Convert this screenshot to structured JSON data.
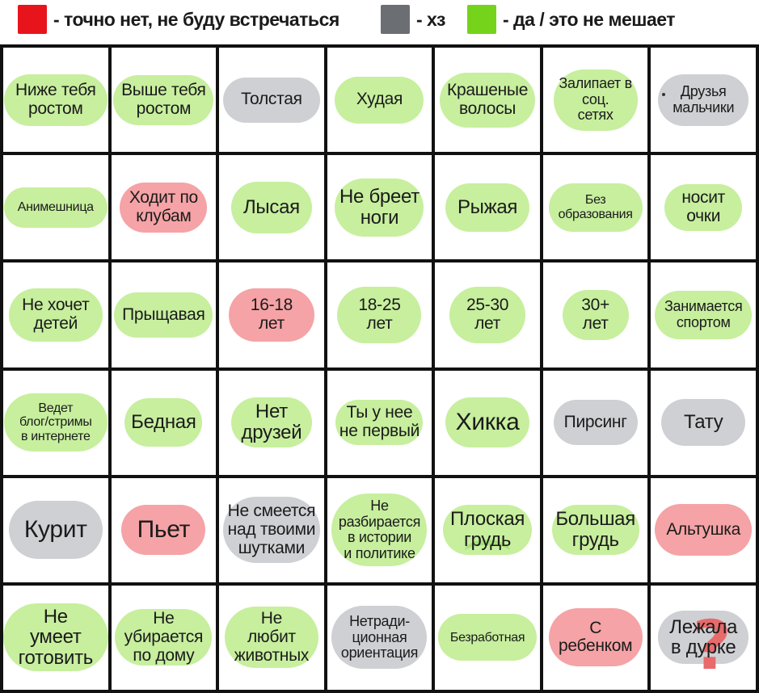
{
  "colors": {
    "no": "#e8141c",
    "unsure": "#6b6f74",
    "yes": "#76d31c",
    "pill_no": "#f5a3a6",
    "pill_unsure": "#cfd0d4",
    "pill_yes": "#c7ef9e"
  },
  "legend": [
    {
      "color": "no",
      "text": "- точно нет, не буду встречаться"
    },
    {
      "color": "unsure",
      "text": "- хз"
    },
    {
      "color": "yes",
      "text": "- да / это не мешает"
    }
  ],
  "cells": [
    {
      "text": "Ниже тебя\nростом",
      "status": "yes"
    },
    {
      "text": "Выше тебя\nростом",
      "status": "yes"
    },
    {
      "text": "Толстая",
      "status": "unsure"
    },
    {
      "text": "Худая",
      "status": "yes"
    },
    {
      "text": "Крашеные\nволосы",
      "status": "yes"
    },
    {
      "text": "Залипает в\nсоц.\nсетях",
      "status": "yes"
    },
    {
      "text": "Друзья\nмальчики",
      "status": "unsure"
    },
    {
      "text": "Анимешница",
      "status": "yes"
    },
    {
      "text": "Ходит по\nклубам",
      "status": "no"
    },
    {
      "text": "Лысая",
      "status": "yes"
    },
    {
      "text": "Не бреет\nноги",
      "status": "yes"
    },
    {
      "text": "Рыжая",
      "status": "yes"
    },
    {
      "text": "Без\nобразования",
      "status": "yes"
    },
    {
      "text": "носит\nочки",
      "status": "yes"
    },
    {
      "text": "Не хочет\nдетей",
      "status": "yes"
    },
    {
      "text": "Прыщавая",
      "status": "yes"
    },
    {
      "text": "16-18\nлет",
      "status": "no"
    },
    {
      "text": "18-25\nлет",
      "status": "yes"
    },
    {
      "text": "25-30\nлет",
      "status": "yes"
    },
    {
      "text": "30+\nлет",
      "status": "yes"
    },
    {
      "text": "Занимается\nспортом",
      "status": "yes"
    },
    {
      "text": "Ведет\nблог/стримы\nв интернете",
      "status": "yes"
    },
    {
      "text": "Бедная",
      "status": "yes"
    },
    {
      "text": "Нет\nдрузей",
      "status": "yes"
    },
    {
      "text": "Ты у нее\nне первый",
      "status": "yes"
    },
    {
      "text": "Хикка",
      "status": "yes"
    },
    {
      "text": "Пирсинг",
      "status": "unsure"
    },
    {
      "text": "Тату",
      "status": "unsure"
    },
    {
      "text": "Курит",
      "status": "unsure"
    },
    {
      "text": "Пьет",
      "status": "no"
    },
    {
      "text": "Не смеется\nнад твоими\nшутками",
      "status": "unsure"
    },
    {
      "text": "Не\nразбирается\nв истории\nи политике",
      "status": "yes"
    },
    {
      "text": "Плоская\nгрудь",
      "status": "yes"
    },
    {
      "text": "Большая\nгрудь",
      "status": "yes"
    },
    {
      "text": "Альтушка",
      "status": "no"
    },
    {
      "text": "Не\nумеет\nготовить",
      "status": "yes"
    },
    {
      "text": "Не\nубирается\nпо дому",
      "status": "yes"
    },
    {
      "text": "Не\nлюбит\nживотных",
      "status": "yes"
    },
    {
      "text": "Нетради-\nционная\nориентация",
      "status": "unsure"
    },
    {
      "text": "Безработная",
      "status": "yes"
    },
    {
      "text": "С\nребенком",
      "status": "no"
    },
    {
      "text": "Лежала\nв дурке",
      "status": "unsure"
    }
  ],
  "decor": {
    "question_mark": "?"
  }
}
